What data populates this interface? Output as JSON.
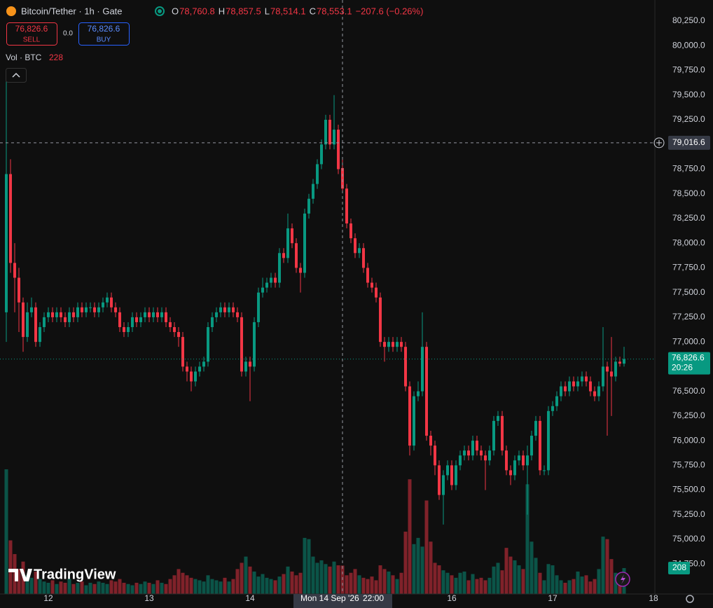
{
  "chart_data": {
    "type": "candlestick",
    "legend": {
      "symbol": "Bitcoin/Tether · 1h · Gate",
      "ohlc": [
        {
          "key": "O",
          "value": "78,760.8"
        },
        {
          "key": "H",
          "value": "78,857.5"
        },
        {
          "key": "L",
          "value": "78,514.1"
        },
        {
          "key": "C",
          "value": "78,553.1"
        }
      ],
      "change": "−207.6 (−0.26%)"
    },
    "trade": {
      "sell_price": "76,826.6",
      "sell": "SELL",
      "spread": "0.0",
      "buy_price": "76,826.6",
      "buy": "BUY"
    },
    "volume_legend": {
      "label": "Vol · BTC",
      "value": "228"
    },
    "watermark": "TradingView",
    "up_color": "#089981",
    "down_color": "#f23645",
    "ylim": [
      74447,
      80463
    ],
    "xlim": [
      -1.5,
      154.5
    ],
    "yticks": [
      {
        "value": 74750,
        "label": "74,750.0"
      },
      {
        "value": 75000,
        "label": "75,000.0"
      },
      {
        "value": 75250,
        "label": "75,250.0"
      },
      {
        "value": 75500,
        "label": "75,500.0"
      },
      {
        "value": 75750,
        "label": "75,750.0"
      },
      {
        "value": 76000,
        "label": "76,000.0"
      },
      {
        "value": 76250,
        "label": "76,250.0"
      },
      {
        "value": 76500,
        "label": "76,500.0"
      },
      {
        "value": 76750,
        "label": "76,750.0"
      },
      {
        "value": 77000,
        "label": "77,000.0"
      },
      {
        "value": 77250,
        "label": "77,250.0"
      },
      {
        "value": 77500,
        "label": "77,500.0"
      },
      {
        "value": 77750,
        "label": "77,750.0"
      },
      {
        "value": 78000,
        "label": "78,000.0"
      },
      {
        "value": 78250,
        "label": "78,250.0"
      },
      {
        "value": 78500,
        "label": "78,500.0"
      },
      {
        "value": 78750,
        "label": "78,750.0"
      },
      {
        "value": 79000,
        "label": "79,000.0"
      },
      {
        "value": 79250,
        "label": "79,250.0"
      },
      {
        "value": 79500,
        "label": "79,500.0"
      },
      {
        "value": 79750,
        "label": "79,750.0"
      },
      {
        "value": 80000,
        "label": "80,000.0"
      },
      {
        "value": 80250,
        "label": "80,250.0"
      }
    ],
    "xticks": [
      {
        "value": 10,
        "label": "12"
      },
      {
        "value": 34,
        "label": "13"
      },
      {
        "value": 58,
        "label": "14"
      },
      {
        "value": 106,
        "label": "16"
      },
      {
        "value": 130,
        "label": "17"
      },
      {
        "value": 154,
        "label": "18"
      }
    ],
    "crosshair": {
      "index": 80,
      "time_label": "Mon 14 Sep '26",
      "hour_label": "22:00",
      "price": 79016.6,
      "price_label": "79,016.6"
    },
    "last": {
      "price_label": "76,826.6",
      "countdown": "20:26",
      "volume_label": "208"
    },
    "candles": [
      [
        77300,
        79750,
        77000,
        78700
      ],
      [
        78700,
        78850,
        77700,
        77800
      ],
      [
        77800,
        78000,
        77300,
        77650
      ],
      [
        77650,
        77750,
        77100,
        77400
      ],
      [
        77400,
        77450,
        76900,
        77050
      ],
      [
        77050,
        77400,
        77000,
        77300
      ],
      [
        77300,
        77450,
        77250,
        77350
      ],
      [
        77350,
        77400,
        76950,
        77000
      ],
      [
        77000,
        77200,
        76950,
        77150
      ],
      [
        77150,
        77300,
        77100,
        77250
      ],
      [
        77250,
        77350,
        77200,
        77300
      ],
      [
        77300,
        77350,
        77200,
        77250
      ],
      [
        77250,
        77350,
        77200,
        77300
      ],
      [
        77300,
        77350,
        77200,
        77250
      ],
      [
        77250,
        77300,
        77150,
        77200
      ],
      [
        77200,
        77350,
        77150,
        77300
      ],
      [
        77300,
        77350,
        77200,
        77250
      ],
      [
        77250,
        77400,
        77200,
        77350
      ],
      [
        77350,
        77400,
        77250,
        77300
      ],
      [
        77300,
        77400,
        77250,
        77350
      ],
      [
        77350,
        77400,
        77300,
        77350
      ],
      [
        77350,
        77400,
        77250,
        77300
      ],
      [
        77300,
        77400,
        77250,
        77350
      ],
      [
        77350,
        77450,
        77300,
        77400
      ],
      [
        77400,
        77500,
        77350,
        77450
      ],
      [
        77450,
        77500,
        77300,
        77350
      ],
      [
        77350,
        77400,
        77250,
        77300
      ],
      [
        77300,
        77350,
        77100,
        77150
      ],
      [
        77150,
        77200,
        77050,
        77100
      ],
      [
        77100,
        77200,
        77050,
        77150
      ],
      [
        77150,
        77300,
        77100,
        77250
      ],
      [
        77250,
        77300,
        77150,
        77200
      ],
      [
        77200,
        77300,
        77150,
        77250
      ],
      [
        77250,
        77350,
        77200,
        77300
      ],
      [
        77300,
        77350,
        77200,
        77250
      ],
      [
        77250,
        77350,
        77200,
        77300
      ],
      [
        77300,
        77350,
        77200,
        77250
      ],
      [
        77250,
        77350,
        77200,
        77300
      ],
      [
        77300,
        77350,
        77150,
        77200
      ],
      [
        77200,
        77250,
        77100,
        77150
      ],
      [
        77150,
        77200,
        77050,
        77100
      ],
      [
        77100,
        77150,
        76950,
        77050
      ],
      [
        77050,
        77100,
        76700,
        76750
      ],
      [
        76750,
        76800,
        76600,
        76700
      ],
      [
        76700,
        76750,
        76500,
        76600
      ],
      [
        76600,
        76750,
        76550,
        76700
      ],
      [
        76700,
        76800,
        76650,
        76750
      ],
      [
        76750,
        76850,
        76700,
        76800
      ],
      [
        76800,
        77200,
        76750,
        77150
      ],
      [
        77150,
        77300,
        77100,
        77250
      ],
      [
        77250,
        77350,
        77200,
        77300
      ],
      [
        77300,
        77400,
        77250,
        77350
      ],
      [
        77350,
        77400,
        77250,
        77300
      ],
      [
        77300,
        77400,
        77250,
        77350
      ],
      [
        77350,
        77400,
        77250,
        77300
      ],
      [
        77300,
        77350,
        77200,
        77250
      ],
      [
        77250,
        77300,
        76650,
        76700
      ],
      [
        76700,
        76850,
        76650,
        76800
      ],
      [
        76800,
        76850,
        76400,
        76750
      ],
      [
        76750,
        77250,
        76700,
        77200
      ],
      [
        77200,
        77550,
        77150,
        77500
      ],
      [
        77500,
        77650,
        77450,
        77550
      ],
      [
        77550,
        77650,
        77500,
        77600
      ],
      [
        77600,
        77700,
        77550,
        77650
      ],
      [
        77650,
        77700,
        77550,
        77600
      ],
      [
        77600,
        77950,
        77550,
        77900
      ],
      [
        77900,
        77950,
        77800,
        77850
      ],
      [
        77850,
        78300,
        77800,
        78150
      ],
      [
        78150,
        78200,
        77950,
        78000
      ],
      [
        78000,
        78050,
        77700,
        77750
      ],
      [
        77750,
        77800,
        77500,
        77700
      ],
      [
        77700,
        78350,
        77650,
        78300
      ],
      [
        78300,
        78500,
        78250,
        78450
      ],
      [
        78450,
        78650,
        78400,
        78600
      ],
      [
        78600,
        78850,
        78550,
        78800
      ],
      [
        78800,
        79050,
        78750,
        79000
      ],
      [
        79000,
        79300,
        78950,
        79250
      ],
      [
        79250,
        79300,
        78950,
        79000
      ],
      [
        79000,
        79500,
        78950,
        79150
      ],
      [
        79150,
        79200,
        78700,
        78750
      ],
      [
        78760.8,
        78857.5,
        78514.1,
        78553.1
      ],
      [
        78553.1,
        78600,
        78150,
        78200
      ],
      [
        78200,
        78250,
        78000,
        78050
      ],
      [
        78050,
        78100,
        77850,
        77900
      ],
      [
        77900,
        78000,
        77850,
        77950
      ],
      [
        77950,
        78000,
        77700,
        77750
      ],
      [
        77750,
        77800,
        77550,
        77600
      ],
      [
        77600,
        77650,
        77500,
        77550
      ],
      [
        77550,
        77600,
        77400,
        77450
      ],
      [
        77450,
        77500,
        76950,
        77000
      ],
      [
        77000,
        77050,
        76800,
        76950
      ],
      [
        76950,
        77050,
        76900,
        77000
      ],
      [
        77000,
        77050,
        76900,
        76950
      ],
      [
        76950,
        77050,
        76900,
        77000
      ],
      [
        77000,
        77050,
        76900,
        76950
      ],
      [
        76950,
        77000,
        76500,
        76550
      ],
      [
        76550,
        76600,
        75850,
        75950
      ],
      [
        75950,
        76500,
        75900,
        76450
      ],
      [
        76450,
        76600,
        76400,
        76500
      ],
      [
        76500,
        77300,
        76450,
        76950
      ],
      [
        76950,
        77000,
        76000,
        76050
      ],
      [
        76050,
        76100,
        75850,
        75950
      ],
      [
        75950,
        76000,
        75650,
        75750
      ],
      [
        75750,
        75800,
        75400,
        75450
      ],
      [
        75450,
        75700,
        75150,
        75650
      ],
      [
        75650,
        75800,
        75600,
        75750
      ],
      [
        75750,
        75800,
        75500,
        75550
      ],
      [
        75550,
        75800,
        75500,
        75750
      ],
      [
        75750,
        75900,
        75700,
        75850
      ],
      [
        75850,
        75950,
        75800,
        75900
      ],
      [
        75900,
        75950,
        75800,
        75850
      ],
      [
        75850,
        76050,
        75800,
        76000
      ],
      [
        76000,
        76050,
        75850,
        75900
      ],
      [
        75900,
        75950,
        75800,
        75850
      ],
      [
        75850,
        75900,
        75500,
        75800
      ],
      [
        75800,
        75950,
        75750,
        75900
      ],
      [
        75900,
        76250,
        75850,
        76200
      ],
      [
        76200,
        76300,
        76150,
        76250
      ],
      [
        76250,
        76300,
        75850,
        75900
      ],
      [
        75900,
        75950,
        75650,
        75700
      ],
      [
        75700,
        75750,
        75550,
        75650
      ],
      [
        75650,
        75850,
        75600,
        75800
      ],
      [
        75800,
        75900,
        75750,
        75850
      ],
      [
        75850,
        75900,
        75700,
        75750
      ],
      [
        75750,
        75950,
        75250,
        75850
      ],
      [
        75850,
        76100,
        75800,
        76050
      ],
      [
        76050,
        76250,
        76000,
        76200
      ],
      [
        76200,
        76250,
        75650,
        75700
      ],
      [
        75700,
        75750,
        75650,
        75700
      ],
      [
        75700,
        76350,
        75650,
        76300
      ],
      [
        76300,
        76400,
        76250,
        76350
      ],
      [
        76350,
        76500,
        76300,
        76450
      ],
      [
        76450,
        76600,
        76400,
        76550
      ],
      [
        76550,
        76600,
        76450,
        76500
      ],
      [
        76500,
        76650,
        76450,
        76600
      ],
      [
        76600,
        76650,
        76500,
        76550
      ],
      [
        76550,
        76650,
        76500,
        76600
      ],
      [
        76600,
        76700,
        76550,
        76650
      ],
      [
        76650,
        76700,
        76550,
        76600
      ],
      [
        76600,
        76650,
        76450,
        76500
      ],
      [
        76500,
        76550,
        76400,
        76450
      ],
      [
        76450,
        76600,
        76400,
        76550
      ],
      [
        76550,
        77150,
        76500,
        76750
      ],
      [
        76750,
        76800,
        76050,
        76700
      ],
      [
        76700,
        77050,
        76250,
        76650
      ],
      [
        76650,
        76850,
        76600,
        76800
      ],
      [
        76800,
        76850,
        76750,
        76780
      ],
      [
        76780,
        76950,
        76750,
        76826.6
      ]
    ],
    "volume": [
      1000,
      430,
      320,
      200,
      260,
      150,
      130,
      180,
      120,
      100,
      90,
      110,
      80,
      100,
      90,
      120,
      80,
      90,
      100,
      70,
      90,
      80,
      100,
      90,
      80,
      110,
      100,
      120,
      90,
      80,
      70,
      90,
      80,
      100,
      90,
      80,
      110,
      90,
      80,
      120,
      150,
      200,
      170,
      150,
      130,
      120,
      110,
      100,
      150,
      120,
      110,
      100,
      130,
      100,
      120,
      200,
      250,
      300,
      220,
      180,
      140,
      160,
      130,
      120,
      110,
      140,
      160,
      220,
      180,
      150,
      170,
      450,
      440,
      300,
      250,
      270,
      240,
      220,
      260,
      230,
      228,
      150,
      170,
      200,
      150,
      130,
      120,
      140,
      110,
      230,
      200,
      180,
      150,
      120,
      170,
      500,
      920,
      400,
      450,
      380,
      750,
      420,
      250,
      230,
      190,
      170,
      150,
      130,
      170,
      180,
      110,
      160,
      120,
      130,
      110,
      130,
      220,
      250,
      190,
      370,
      300,
      270,
      230,
      200,
      880,
      420,
      290,
      170,
      110,
      240,
      230,
      150,
      110,
      90,
      110,
      120,
      180,
      140,
      150,
      100,
      120,
      200,
      460,
      440,
      280,
      170,
      150,
      208
    ]
  }
}
